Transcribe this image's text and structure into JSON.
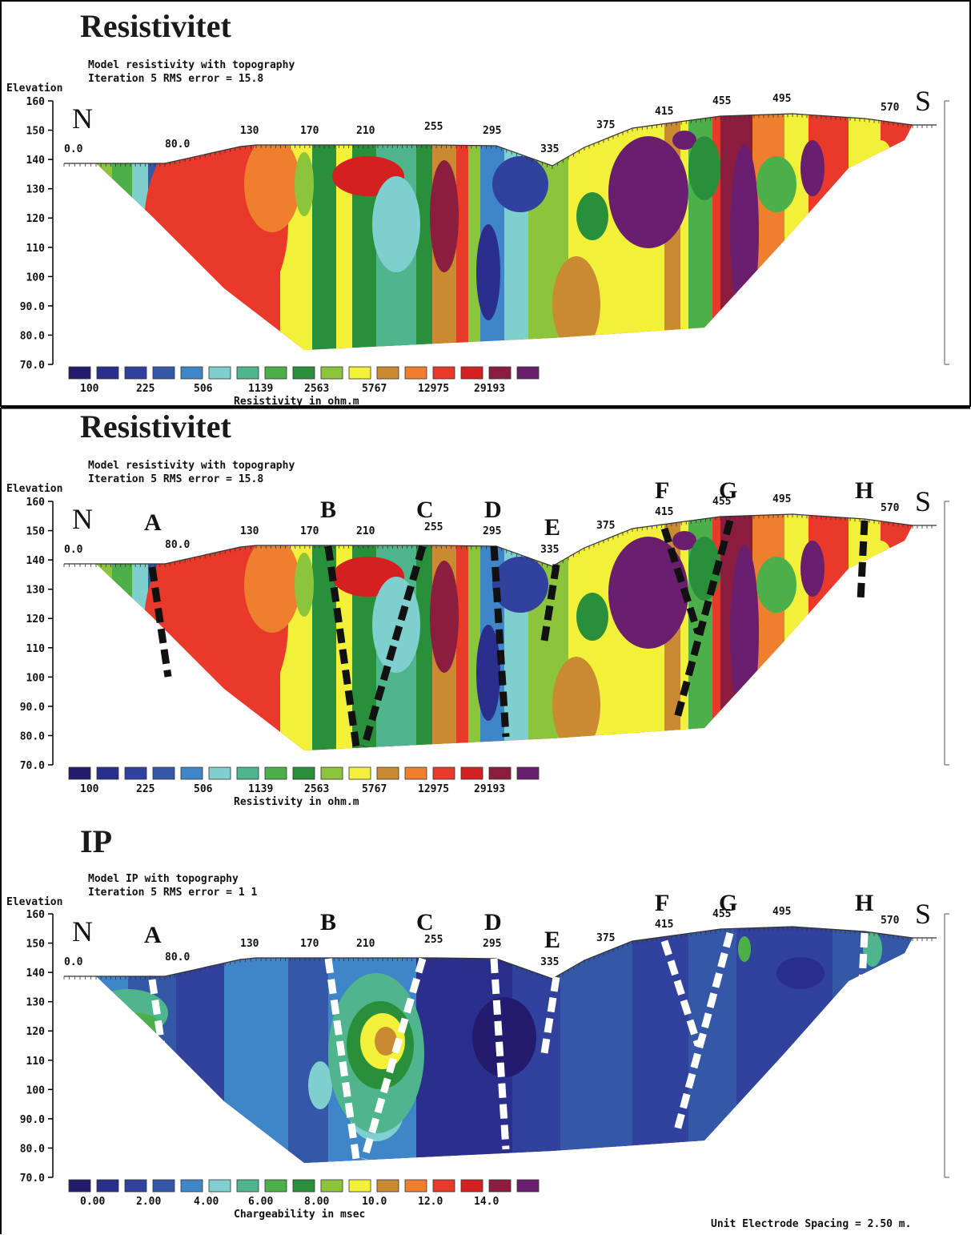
{
  "footer_note": "Unit Electrode Spacing = 2.50 m.",
  "chart_data": [
    {
      "type": "heatmap",
      "title": "Resistivitet",
      "subtitle1": "Model resistivity with topography",
      "subtitle2": "Iteration 5 RMS error = 15.8",
      "ylabel": "Elevation",
      "yticks": [
        "160",
        "150",
        "140",
        "130",
        "120",
        "110",
        "100",
        "90.0",
        "80.0",
        "70.0"
      ],
      "ylim": [
        70,
        160
      ],
      "x_top_labels": [
        "0.0",
        "80.0",
        "130",
        "170",
        "210",
        "255",
        "295",
        "335",
        "375",
        "415",
        "455",
        "495",
        "570"
      ],
      "north_label": "N",
      "south_label": "S",
      "legend_values": [
        "100",
        "225",
        "506",
        "1139",
        "2563",
        "5767",
        "12975",
        "29193"
      ],
      "legend_title": "Resistivity in ohm.m",
      "fault_markers": []
    },
    {
      "type": "heatmap",
      "title": "Resistivitet",
      "subtitle1": "Model resistivity with topography",
      "subtitle2": "Iteration 5 RMS error = 15.8",
      "ylabel": "Elevation",
      "yticks": [
        "160",
        "150",
        "140",
        "130",
        "120",
        "110",
        "100",
        "90.0",
        "80.0",
        "70.0"
      ],
      "ylim": [
        70,
        160
      ],
      "x_top_labels": [
        "0.0",
        "80.0",
        "130",
        "170",
        "210",
        "255",
        "295",
        "335",
        "375",
        "415",
        "455",
        "495",
        "570"
      ],
      "north_label": "N",
      "south_label": "S",
      "legend_values": [
        "100",
        "225",
        "506",
        "1139",
        "2563",
        "5767",
        "12975",
        "29193"
      ],
      "legend_title": "Resistivity in ohm.m",
      "fault_markers": [
        "A",
        "B",
        "C",
        "D",
        "E",
        "F",
        "G",
        "H"
      ]
    },
    {
      "type": "heatmap",
      "title": "IP",
      "subtitle1": "Model IP with topography",
      "subtitle2": "Iteration 5 RMS error = 1 1",
      "ylabel": "Elevation",
      "yticks": [
        "160",
        "150",
        "140",
        "130",
        "120",
        "110",
        "100",
        "90.0",
        "80.0",
        "70.0"
      ],
      "ylim": [
        70,
        160
      ],
      "x_top_labels": [
        "0.0",
        "80.0",
        "130",
        "170",
        "210",
        "255",
        "295",
        "335",
        "375",
        "415",
        "455",
        "495",
        "570"
      ],
      "north_label": "N",
      "south_label": "S",
      "legend_values": [
        "0.00",
        "2.00",
        "4.00",
        "6.00",
        "8.00",
        "10.0",
        "12.0",
        "14.0"
      ],
      "legend_title": "Chargeability in msec",
      "fault_markers": [
        "A",
        "B",
        "C",
        "D",
        "E",
        "F",
        "G",
        "H"
      ]
    }
  ],
  "palette": [
    "#231c6e",
    "#2a2f8e",
    "#30419e",
    "#3557a8",
    "#3f86c9",
    "#7fcfcf",
    "#4fb58c",
    "#4caf4a",
    "#2a8f3a",
    "#8cc43c",
    "#f3f03a",
    "#c98a32",
    "#ee7f2f",
    "#e8392a",
    "#d42020",
    "#8b1e3f",
    "#6a1f6e"
  ],
  "fault_line_colors": {
    "resistivity": "#111111",
    "ip": "#ffffff"
  }
}
